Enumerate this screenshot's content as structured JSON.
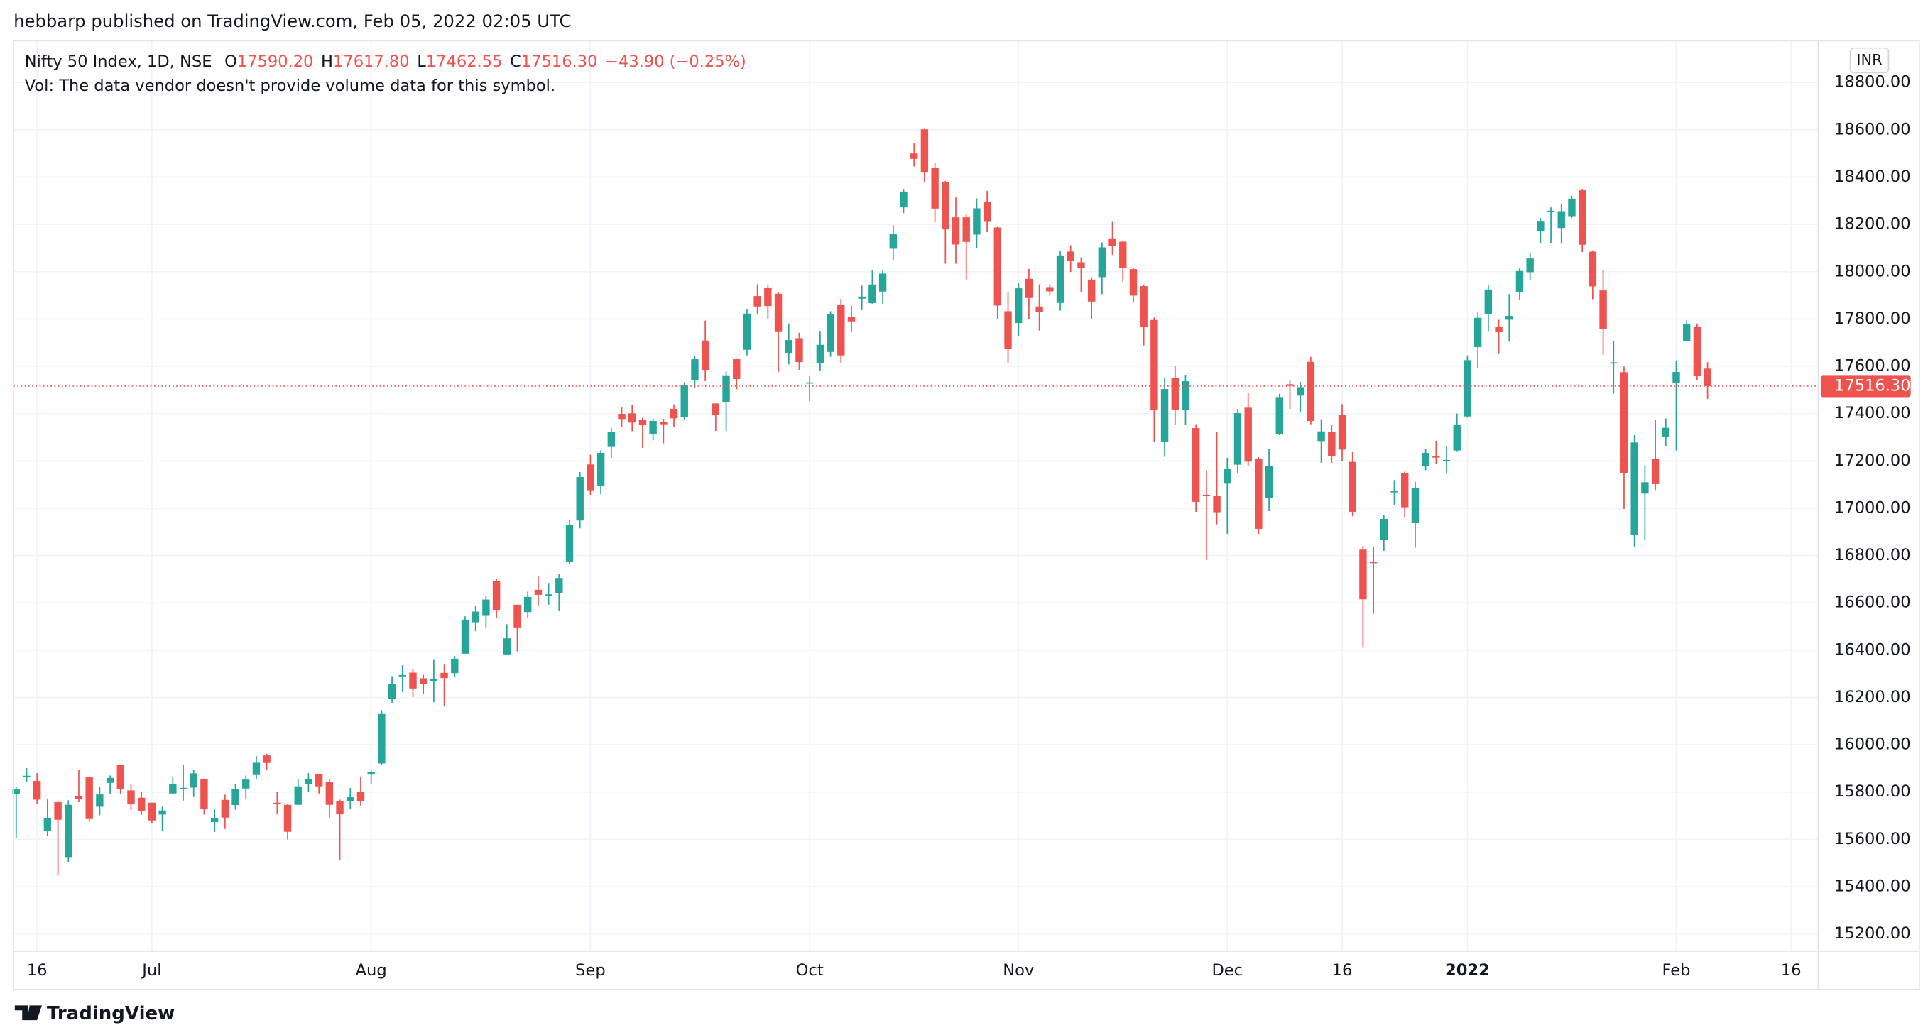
{
  "header": {
    "published": "hebbarp published on TradingView.com, Feb 05, 2022 02:05 UTC",
    "symbol": "Nifty 50 Index, 1D, NSE",
    "o_label": "O",
    "o": "17590.20",
    "h_label": "H",
    "h": "17617.80",
    "l_label": "L",
    "l": "17462.55",
    "c_label": "C",
    "c": "17516.30",
    "change": "−43.90 (−0.25%)",
    "vol": "Vol: The data vendor doesn't provide volume data for this symbol.",
    "currency": "INR",
    "brand": "TradingView"
  },
  "chart_data": {
    "type": "candlestick",
    "up_color": "#26a69a",
    "down_color": "#ef5350",
    "grid": true,
    "ylim": [
      15127,
      18977
    ],
    "yticks": [
      {
        "value": 15200,
        "label": "15200.00"
      },
      {
        "value": 15400,
        "label": "15400.00"
      },
      {
        "value": 15600,
        "label": "15600.00"
      },
      {
        "value": 15800,
        "label": "15800.00"
      },
      {
        "value": 16000,
        "label": "16000.00"
      },
      {
        "value": 16200,
        "label": "16200.00"
      },
      {
        "value": 16400,
        "label": "16400.00"
      },
      {
        "value": 16600,
        "label": "16600.00"
      },
      {
        "value": 16800,
        "label": "16800.00"
      },
      {
        "value": 17000,
        "label": "17000.00"
      },
      {
        "value": 17200,
        "label": "17200.00"
      },
      {
        "value": 17400,
        "label": "17400.00"
      },
      {
        "value": 17600,
        "label": "17600.00"
      },
      {
        "value": 17800,
        "label": "17800.00"
      },
      {
        "value": 18000,
        "label": "18000.00"
      },
      {
        "value": 18200,
        "label": "18200.00"
      },
      {
        "value": 18400,
        "label": "18400.00"
      },
      {
        "value": 18600,
        "label": "18600.00"
      },
      {
        "value": 18800,
        "label": "18800.00"
      }
    ],
    "xlim": [
      -0.25,
      172.6
    ],
    "xticks": [
      {
        "value": 2,
        "label": "16"
      },
      {
        "value": 13,
        "label": "Jul"
      },
      {
        "value": 34,
        "label": "Aug"
      },
      {
        "value": 55,
        "label": "Sep"
      },
      {
        "value": 76,
        "label": "Oct"
      },
      {
        "value": 96,
        "label": "Nov"
      },
      {
        "value": 116,
        "label": "Dec"
      },
      {
        "value": 127,
        "label": "16"
      },
      {
        "value": 139,
        "label": "2022"
      },
      {
        "value": 159,
        "label": "Feb"
      },
      {
        "value": 170,
        "label": "16"
      }
    ],
    "last_price": {
      "value": 17516.3,
      "label": "17516.30"
    },
    "open": [
      15791,
      15867,
      15847,
      15637,
      15757,
      15525,
      15783,
      15862,
      15738,
      15839,
      15916,
      15807,
      15776,
      15755,
      15705,
      15794,
      15813,
      15819,
      15856,
      15673,
      15767,
      15745,
      15815,
      15872,
      15955,
      15755,
      15746,
      15746,
      15833,
      15875,
      15842,
      15762,
      15763,
      15800,
      15874,
      15921,
      16195,
      16289,
      16305,
      16281,
      16268,
      16304,
      16303,
      16385,
      16518,
      16545,
      16691,
      16382,
      16592,
      16561,
      16655,
      16628,
      16642,
      16775,
      16948,
      17185,
      17095,
      17262,
      17399,
      17401,
      17375,
      17313,
      17363,
      17420,
      17387,
      17540,
      17709,
      17443,
      17450,
      17630,
      17670,
      17897,
      17932,
      17907,
      17657,
      17719,
      17531,
      17615,
      17661,
      17861,
      17810,
      17886,
      17867,
      17916,
      18097,
      18272,
      18500,
      18602,
      18439,
      18380,
      18230,
      18230,
      18157,
      18296,
      18187,
      17833,
      17783,
      17970,
      17853,
      17935,
      17868,
      18085,
      18040,
      17967,
      17977,
      18141,
      18127,
      18011,
      17939,
      17796,
      17281,
      17550,
      17417,
      17339,
      17056,
      17051,
      17104,
      17184,
      17425,
      17209,
      17044,
      17315,
      17524,
      17476,
      17619,
      17284,
      17324,
      17396,
      17196,
      16825,
      16773,
      16865,
      17067,
      17150,
      16937,
      17178,
      17220,
      17201,
      17244,
      17388,
      17681,
      17821,
      17768,
      17797,
      17913,
      17998,
      18170,
      18257,
      18185,
      18235,
      18344,
      18085,
      17921,
      17613,
      17575,
      16889,
      17062,
      17208,
      17301,
      17530,
      17706,
      17768,
      17590.2
    ],
    "high": [
      15823,
      15901,
      15880,
      15769,
      15761,
      15765,
      15895,
      15866,
      15821,
      15870,
      15916,
      15835,
      15800,
      15755,
      15738,
      15862,
      15915,
      15893,
      15856,
      15729,
      15789,
      15835,
      15870,
      15952,
      15962,
      15800,
      15749,
      15856,
      15880,
      15875,
      15853,
      15768,
      15817,
      15862,
      15892,
      16146,
      16290,
      16336,
      16321,
      16296,
      16359,
      16339,
      16375,
      16543,
      16589,
      16628,
      16701,
      16509,
      16592,
      16647,
      16712,
      16684,
      16722,
      16951,
      17153,
      17226,
      17245,
      17340,
      17429,
      17437,
      17383,
      17379,
      17378,
      17439,
      17533,
      17645,
      17793,
      17443,
      17578,
      17631,
      17843,
      17947,
      17943,
      17912,
      17781,
      17742,
      17558,
      17750,
      17833,
      17884,
      17857,
      17941,
      18008,
      18009,
      18197,
      18350,
      18543,
      18604,
      18459,
      18384,
      18314,
      18241,
      18310,
      18342,
      18190,
      17916,
      17954,
      18012,
      17947,
      17947,
      18088,
      18112,
      18061,
      17977,
      18124,
      18211,
      18132,
      18016,
      17946,
      17806,
      17553,
      17601,
      17564,
      17355,
      17160,
      17324,
      17213,
      17420,
      17489,
      17216,
      17251,
      17484,
      17543,
      17534,
      17640,
      17376,
      17351,
      17440,
      17237,
      16841,
      16837,
      16971,
      17119,
      17155,
      17112,
      17250,
      17285,
      17264,
      17400,
      17646,
      17827,
      17944,
      17797,
      17905,
      18017,
      18081,
      18227,
      18272,
      18287,
      18321,
      18350,
      18090,
      18006,
      17707,
      17599,
      17309,
      17182,
      17373,
      17380,
      17622,
      17794,
      17781,
      17617.8
    ],
    "low": [
      15607,
      15842,
      15749,
      15616,
      15450,
      15505,
      15757,
      15673,
      15702,
      15791,
      15792,
      15725,
      15704,
      15667,
      15635,
      15791,
      15764,
      15779,
      15705,
      15632,
      15644,
      15725,
      15770,
      15855,
      15893,
      15707,
      15600,
      15745,
      15802,
      15794,
      15689,
      15513,
      15729,
      15744,
      15834,
      15915,
      16177,
      16223,
      16202,
      16213,
      16180,
      16162,
      16286,
      16386,
      16480,
      16495,
      16535,
      16395,
      16395,
      16535,
      16589,
      16592,
      16565,
      16764,
      16915,
      17055,
      17059,
      17212,
      17345,
      17326,
      17255,
      17287,
      17274,
      17345,
      17373,
      17510,
      17537,
      17327,
      17326,
      17503,
      17646,
      17819,
      17802,
      17576,
      17608,
      17585,
      17452,
      17581,
      17640,
      17613,
      17748,
      17840,
      17865,
      17864,
      18050,
      18248,
      18445,
      18377,
      18210,
      18034,
      18034,
      17968,
      18100,
      18167,
      17800,
      17613,
      17729,
      17799,
      17751,
      17900,
      17836,
      17999,
      17915,
      17801,
      17905,
      18071,
      17958,
      17869,
      17688,
      17280,
      17217,
      17354,
      17354,
      16985,
      16782,
      16932,
      16892,
      17150,
      17180,
      16892,
      16988,
      17309,
      17420,
      17405,
      17355,
      17192,
      17192,
      17200,
      16966,
      16410,
      16554,
      16820,
      17015,
      16960,
      16833,
      17161,
      17186,
      17146,
      17238,
      17383,
      17593,
      17749,
      17655,
      17704,
      17879,
      17964,
      18120,
      18120,
      18119,
      18228,
      18083,
      17884,
      17648,
      17485,
      16997,
      16837,
      16866,
      17077,
      17264,
      17244,
      17705,
      17540,
      17462.55
    ],
    "close": [
      15811,
      15869,
      15768,
      15691,
      15683,
      15746,
      15772,
      15686,
      15790,
      15860,
      15814,
      15748,
      15721,
      15680,
      15722,
      15834,
      15818,
      15879,
      15727,
      15689,
      15692,
      15812,
      15853,
      15924,
      15923,
      15752,
      15632,
      15824,
      15856,
      15824,
      15746,
      15709,
      15778,
      15763,
      15885,
      16130,
      16258,
      16295,
      16238,
      16258,
      16280,
      16282,
      16364,
      16529,
      16563,
      16614,
      16569,
      16450,
      16496,
      16625,
      16634,
      16636,
      16705,
      16931,
      17132,
      17076,
      17234,
      17324,
      17377,
      17362,
      17353,
      17369,
      17355,
      17380,
      17519,
      17630,
      17585,
      17396,
      17562,
      17546,
      17823,
      17853,
      17855,
      17748,
      17711,
      17618,
      17532,
      17691,
      17822,
      17646,
      17790,
      17895,
      17946,
      17992,
      18161,
      18339,
      18477,
      18419,
      18267,
      18179,
      18115,
      18126,
      18268,
      18211,
      17857,
      17672,
      17930,
      17889,
      17830,
      17917,
      18069,
      18045,
      18017,
      17874,
      18103,
      18109,
      18017,
      17899,
      17765,
      17417,
      17504,
      17416,
      17537,
      17027,
      17054,
      16983,
      17167,
      17402,
      17197,
      16913,
      17177,
      17470,
      17517,
      17512,
      17369,
      17325,
      17222,
      17248,
      16985,
      16615,
      16771,
      16955,
      17073,
      17004,
      17087,
      17234,
      17214,
      17204,
      17354,
      17626,
      17805,
      17925,
      17746,
      17813,
      18003,
      18056,
      18212,
      18258,
      18256,
      18309,
      18114,
      17938,
      17757,
      17617,
      17149,
      17278,
      17110,
      17102,
      17340,
      17576,
      17780,
      17560,
      17516.3
    ]
  }
}
